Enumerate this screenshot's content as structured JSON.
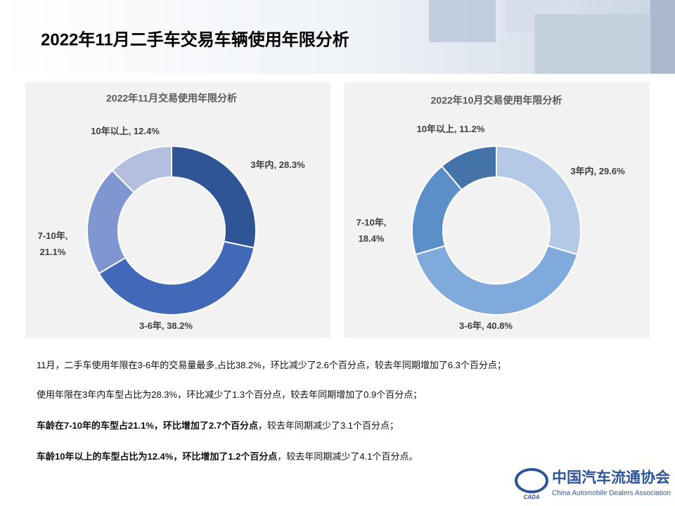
{
  "header": {
    "title": "2022年11月二手车交易车辆使用年限分析"
  },
  "chart_data": [
    {
      "type": "pie",
      "title": "2022年11月交易使用年限分析",
      "categories": [
        "3年内",
        "3-6年",
        "7-10年",
        "10年以上"
      ],
      "values": [
        28.3,
        38.2,
        21.1,
        12.4
      ],
      "value_labels": [
        "28.3%",
        "38.2%",
        "21.1%",
        "12.4%"
      ],
      "label_separator": ", ",
      "colors": [
        "#2f5597",
        "#4169b8",
        "#7f96d0",
        "#b4bfe0"
      ]
    },
    {
      "type": "pie",
      "title": "2022年10月交易使用年限分析",
      "categories": [
        "3年内",
        "3-6年",
        "7-10年",
        "10年以上"
      ],
      "values": [
        29.6,
        40.8,
        18.4,
        11.2
      ],
      "value_labels": [
        "29.6%",
        "40.8%",
        "18.4%",
        "11.2%"
      ],
      "label_separator": ", ",
      "colors": [
        "#b4c9e6",
        "#7faadb",
        "#5a8fc9",
        "#4373a8"
      ]
    }
  ],
  "paragraphs": [
    [
      {
        "text": "11月，二手车使用年限在3-6年的交易量最多,占比38.2%，环比减少了2.6个百分点，较去年同期增加了6.3个百分点；",
        "bold": false
      }
    ],
    [
      {
        "text": "使用年限在3年内车型占比为28.3%，环比减少了1.3个百分点，较去年同期增加了0.9个百分点；",
        "bold": false
      }
    ],
    [
      {
        "text": "车龄在7-10年的车型占21.1%，环比增加了2.7个百分点",
        "bold": true
      },
      {
        "text": "，较去年同期减少了3.1个百分点；",
        "bold": false
      }
    ],
    [
      {
        "text": "车龄10年以上的车型占比为12.4%，环比增加了1.2个百分点",
        "bold": true
      },
      {
        "text": "，较去年同期减少了4.1个百分点。",
        "bold": false
      }
    ]
  ],
  "logo": {
    "badge": "CADA",
    "name_cn": "中国汽车流通协会",
    "name_en": "China Automobile Dealers Association"
  }
}
